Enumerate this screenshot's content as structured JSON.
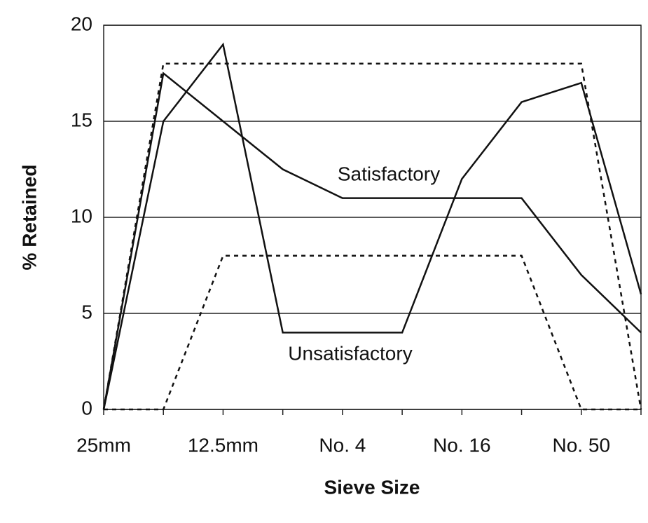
{
  "chart_data": {
    "type": "line",
    "xlabel": "Sieve Size",
    "ylabel": "% Retained",
    "categories": [
      "25mm",
      null,
      "12.5mm",
      null,
      "No. 4",
      null,
      "No. 16",
      null,
      "No. 50",
      null
    ],
    "series": [
      {
        "name": "Satisfactory",
        "color": "#111111",
        "style": "solid",
        "values": [
          0,
          17.5,
          15,
          12.5,
          11,
          11,
          11,
          11,
          7,
          4
        ]
      },
      {
        "name": "Unsatisfactory",
        "color": "#111111",
        "style": "solid",
        "values": [
          0,
          15,
          19,
          4,
          4,
          4,
          12,
          16,
          17,
          6
        ]
      },
      {
        "color": "#111111",
        "style": "dashed",
        "values": [
          0,
          18,
          18,
          18,
          18,
          18,
          18,
          18,
          18,
          0
        ]
      },
      {
        "color": "#111111",
        "style": "dashed",
        "values": [
          0,
          0,
          8,
          8,
          8,
          8,
          8,
          8,
          0,
          0
        ]
      }
    ],
    "ylim": [
      0,
      20
    ],
    "yticks": [
      0,
      5,
      10,
      15,
      20
    ],
    "grid": true
  }
}
